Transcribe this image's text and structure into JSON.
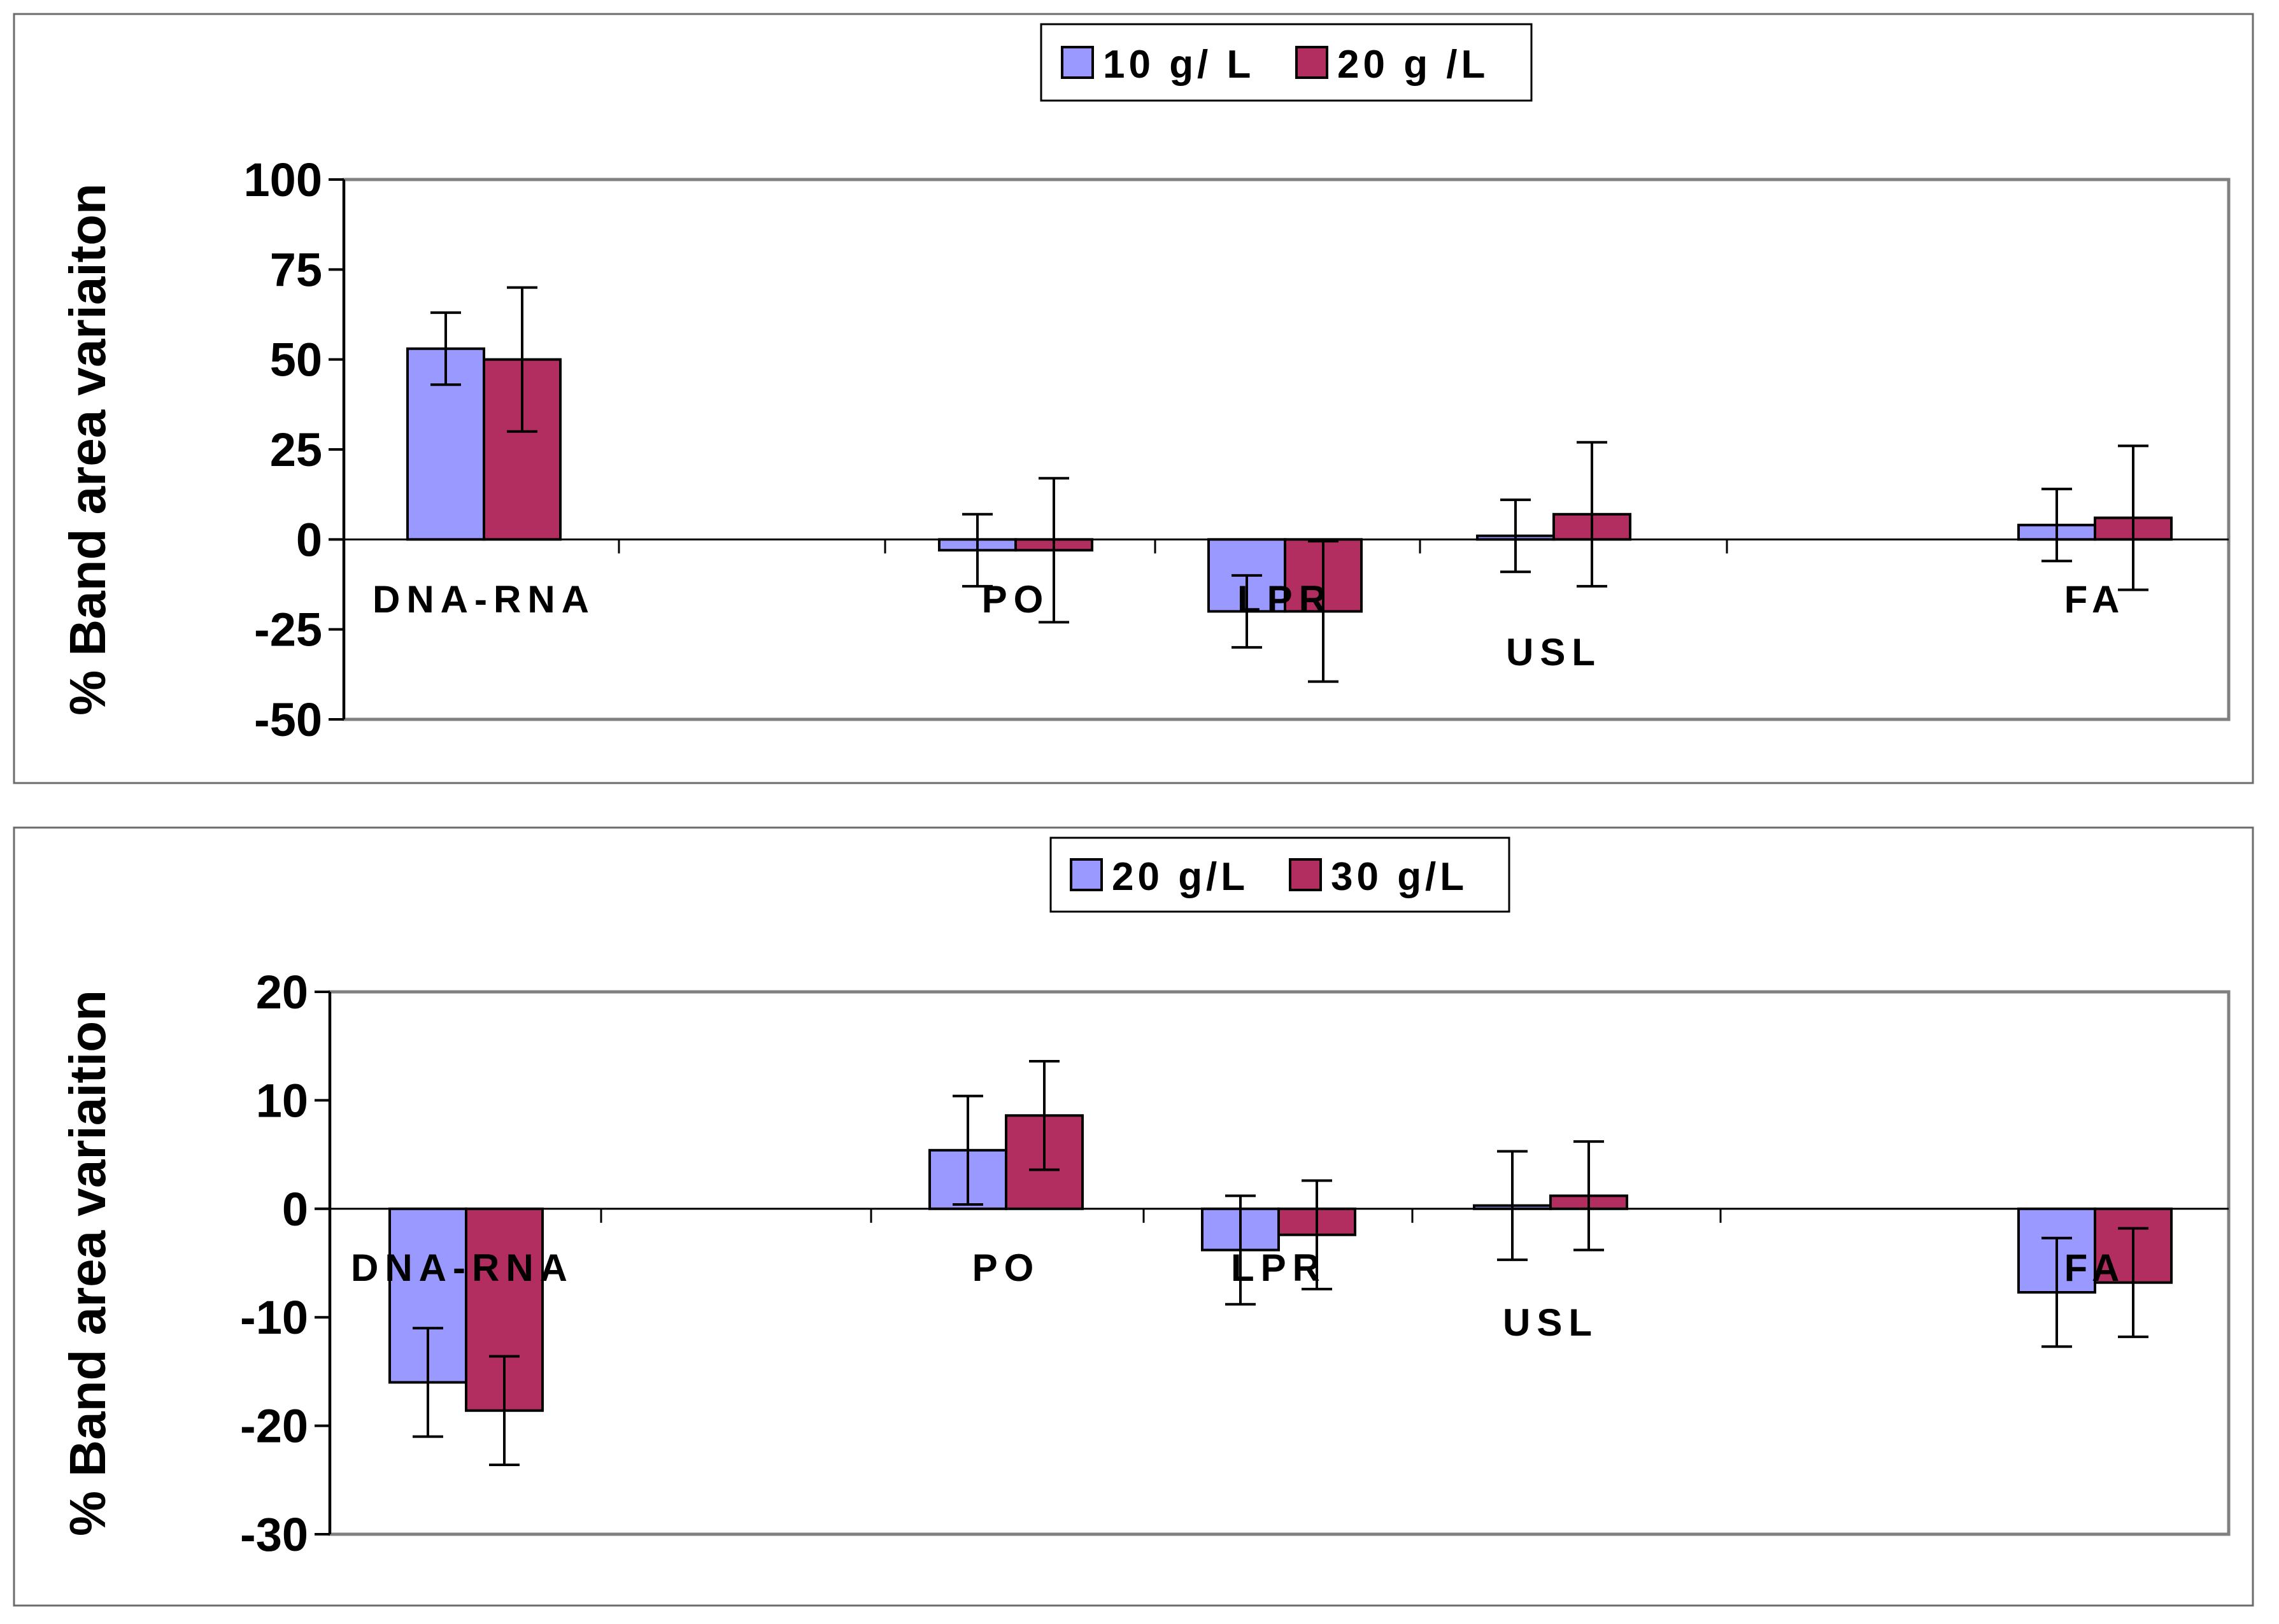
{
  "colors": {
    "series_a": "#9999ff",
    "series_b": "#b22d60",
    "frame": "#808080",
    "panel_border": "#6b6b6b",
    "text": "#000000"
  },
  "chart_data": [
    {
      "type": "bar",
      "ylabel": "% Band area variaiton",
      "ylim": [
        -50,
        100
      ],
      "yticks": [
        "100",
        "75",
        "50",
        "25",
        "0",
        "-25",
        "-50"
      ],
      "ytick_values": [
        100,
        75,
        50,
        25,
        0,
        -25,
        -50
      ],
      "categories": [
        "DNA-RNA",
        "PO",
        "LPR",
        "USL",
        "FA"
      ],
      "legend_position": "top-center",
      "series": [
        {
          "name": "10  g/ L",
          "values": [
            53,
            -3,
            -20,
            1,
            4
          ],
          "errors": [
            10,
            10,
            10,
            10,
            10
          ]
        },
        {
          "name": "20  g /L",
          "values": [
            50,
            -3,
            -20,
            7,
            6
          ],
          "errors": [
            20,
            20,
            19.5,
            20,
            20
          ]
        }
      ]
    },
    {
      "type": "bar",
      "ylabel": "% Band area variaition",
      "ylim": [
        -30,
        20
      ],
      "yticks": [
        "20",
        "10",
        "0",
        "-10",
        "-20",
        "-30"
      ],
      "ytick_values": [
        20,
        10,
        0,
        -10,
        -20,
        -30
      ],
      "categories": [
        "DNA-RNA",
        "PO",
        "LPR",
        "USL",
        "FA"
      ],
      "legend_position": "top-center",
      "series": [
        {
          "name": "20 g/L",
          "values": [
            -16,
            5.4,
            -3.8,
            0.3,
            -7.7
          ],
          "errors": [
            5,
            5,
            5,
            5,
            5
          ]
        },
        {
          "name": "30 g/L",
          "values": [
            -18.6,
            8.6,
            -2.4,
            1.2,
            -6.8
          ],
          "errors": [
            5,
            5,
            5,
            5,
            5
          ]
        }
      ]
    }
  ]
}
